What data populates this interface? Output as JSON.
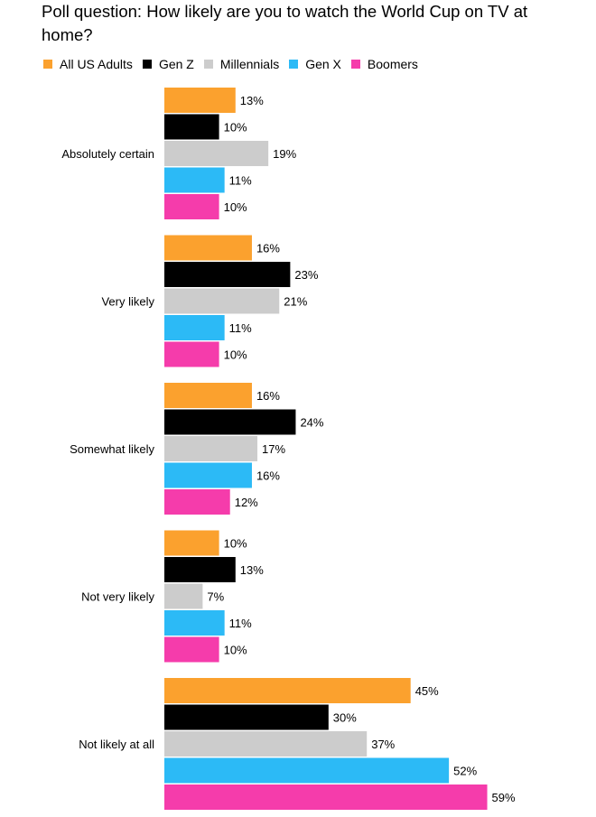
{
  "title": "Poll question: How likely are you to watch the World Cup on TV at home?",
  "chart_data": {
    "type": "bar",
    "orientation": "horizontal",
    "title": "Poll question: How likely are you to watch the World Cup on TV at home?",
    "categories": [
      "Absolutely certain",
      "Very likely",
      "Somewhat likely",
      "Not very likely",
      "Not likely at all"
    ],
    "series": [
      {
        "name": "All US Adults",
        "color": "#fba12e",
        "values": [
          13,
          16,
          16,
          10,
          45
        ]
      },
      {
        "name": "Gen Z",
        "color": "#000000",
        "values": [
          10,
          23,
          24,
          13,
          30
        ]
      },
      {
        "name": "Millennials",
        "color": "#cccccc",
        "values": [
          19,
          21,
          17,
          7,
          37
        ]
      },
      {
        "name": "Gen X",
        "color": "#2cbaf6",
        "values": [
          11,
          11,
          16,
          11,
          52
        ]
      },
      {
        "name": "Boomers",
        "color": "#f53cab",
        "values": [
          10,
          10,
          12,
          10,
          59
        ]
      }
    ],
    "value_suffix": "%",
    "legend_position": "top-left",
    "grid": false
  }
}
